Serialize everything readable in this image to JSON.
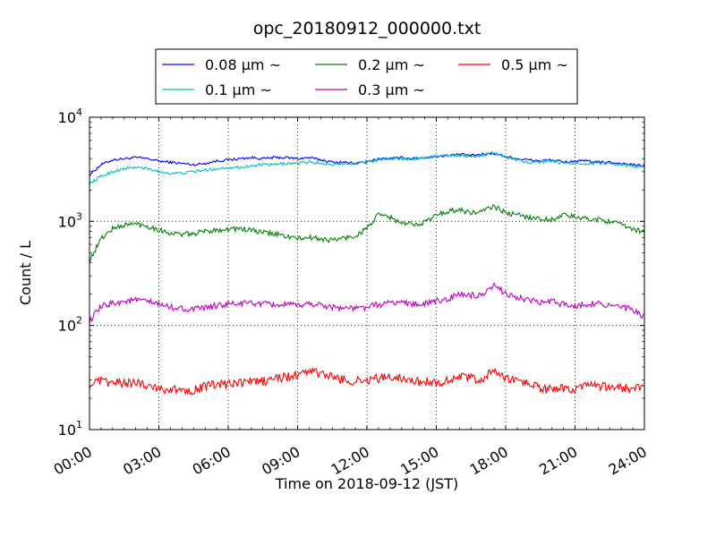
{
  "chart_data": {
    "type": "line",
    "title": "opc_20180912_000000.txt",
    "xlabel": "Time on 2018-09-12 (JST)",
    "ylabel": "Count / L",
    "x_unit": "hour",
    "xlim": [
      0,
      24
    ],
    "ylim": [
      10,
      10000
    ],
    "yscale": "log",
    "grid": true,
    "legend_position": "top-center",
    "x_ticks": [
      {
        "value": 0,
        "label": "00:00"
      },
      {
        "value": 3,
        "label": "03:00"
      },
      {
        "value": 6,
        "label": "06:00"
      },
      {
        "value": 9,
        "label": "09:00"
      },
      {
        "value": 12,
        "label": "12:00"
      },
      {
        "value": 15,
        "label": "15:00"
      },
      {
        "value": 18,
        "label": "18:00"
      },
      {
        "value": 21,
        "label": "21:00"
      },
      {
        "value": 24,
        "label": "24:00"
      }
    ],
    "y_ticks": [
      {
        "value": 10,
        "base": "10",
        "exp": "1"
      },
      {
        "value": 100,
        "base": "10",
        "exp": "2"
      },
      {
        "value": 1000,
        "base": "10",
        "exp": "3"
      },
      {
        "value": 10000,
        "base": "10",
        "exp": "4"
      }
    ],
    "x": [
      0,
      0.5,
      1,
      1.5,
      2,
      2.5,
      3,
      3.5,
      4,
      4.5,
      5,
      5.5,
      6,
      6.5,
      7,
      7.5,
      8,
      8.5,
      9,
      9.5,
      10,
      10.5,
      11,
      11.5,
      12,
      12.5,
      13,
      13.5,
      14,
      14.5,
      15,
      15.5,
      16,
      16.5,
      17,
      17.5,
      18,
      18.5,
      19,
      19.5,
      20,
      20.5,
      21,
      21.5,
      22,
      22.5,
      23,
      23.5,
      24
    ],
    "series": [
      {
        "name": "0.08 μm ~",
        "color": "#0000ff",
        "values": [
          2800,
          3500,
          3900,
          4000,
          4100,
          4000,
          3800,
          3700,
          3600,
          3500,
          3600,
          3800,
          3900,
          4000,
          4100,
          4000,
          4100,
          4100,
          4000,
          4100,
          3900,
          3700,
          3700,
          3600,
          3700,
          4000,
          4000,
          4100,
          4000,
          4100,
          4200,
          4300,
          4400,
          4300,
          4400,
          4500,
          4200,
          4000,
          3900,
          3800,
          3900,
          3700,
          3800,
          3800,
          3700,
          3700,
          3600,
          3500,
          3400
        ]
      },
      {
        "name": "0.1 μm ~",
        "color": "#00bfbf",
        "values": [
          2300,
          2700,
          3000,
          3200,
          3300,
          3200,
          3000,
          2900,
          2900,
          3000,
          3100,
          3200,
          3300,
          3300,
          3400,
          3500,
          3500,
          3600,
          3600,
          3700,
          3600,
          3500,
          3600,
          3600,
          3800,
          3900,
          4000,
          4000,
          4000,
          4100,
          4200,
          4300,
          4300,
          4200,
          4300,
          4600,
          4100,
          3900,
          3700,
          3700,
          3800,
          3600,
          3600,
          3600,
          3600,
          3600,
          3500,
          3400,
          3300
        ]
      },
      {
        "name": "0.2 μm ~",
        "color": "#008000",
        "values": [
          420,
          680,
          850,
          920,
          950,
          900,
          830,
          770,
          750,
          760,
          800,
          830,
          840,
          850,
          820,
          780,
          760,
          720,
          680,
          700,
          680,
          660,
          690,
          720,
          860,
          1150,
          1100,
          950,
          940,
          980,
          1150,
          1250,
          1300,
          1200,
          1250,
          1400,
          1200,
          1150,
          1100,
          1050,
          1050,
          1150,
          1100,
          1050,
          1050,
          1000,
          920,
          850,
          790
        ]
      },
      {
        "name": "0.3 μm ~",
        "color": "#bf00bf",
        "values": [
          110,
          150,
          165,
          170,
          175,
          170,
          160,
          150,
          145,
          142,
          148,
          155,
          160,
          162,
          165,
          160,
          158,
          158,
          155,
          162,
          158,
          150,
          148,
          145,
          150,
          158,
          165,
          168,
          160,
          162,
          170,
          180,
          200,
          195,
          190,
          240,
          205,
          185,
          175,
          165,
          170,
          160,
          155,
          160,
          165,
          155,
          150,
          140,
          120
        ]
      },
      {
        "name": "0.5 μm ~",
        "color": "#ff0000",
        "values": [
          27,
          29,
          28,
          28,
          28,
          27,
          25,
          24,
          24,
          24,
          26,
          27,
          27,
          28,
          29,
          29,
          31,
          32,
          33,
          37,
          34,
          32,
          30,
          29,
          30,
          31,
          32,
          32,
          29,
          29,
          28,
          30,
          32,
          31,
          30,
          38,
          30,
          30,
          28,
          25,
          24,
          25,
          24,
          26,
          26,
          25,
          25,
          25,
          25
        ]
      }
    ]
  }
}
